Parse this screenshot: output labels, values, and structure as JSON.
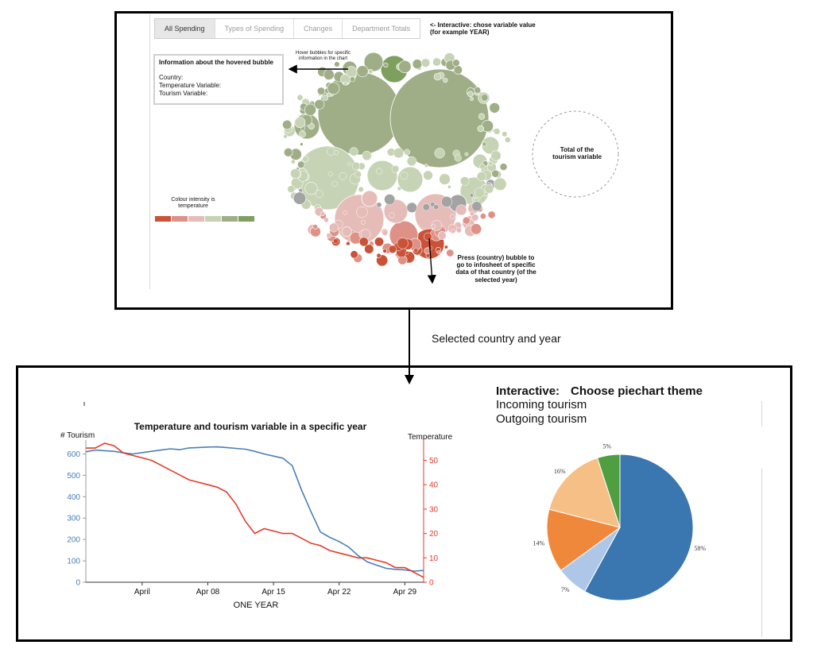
{
  "top_panel": {
    "tabs": [
      {
        "label": "All Spending",
        "active": true
      },
      {
        "label": "Types of Spending",
        "active": false
      },
      {
        "label": "Changes",
        "active": false
      },
      {
        "label": "Department Totals",
        "active": false
      }
    ],
    "note_interactive": "<- Interactive: chose variable value\n(for example YEAR)",
    "note_hover": "Hover bubbles for specific\ninformation in the chart",
    "infobox": {
      "title": "Information about the hovered bubble",
      "fields": [
        "Country:",
        "Temperature Variable:",
        "Tourism Variable:"
      ]
    },
    "legend": {
      "label": "Colour intensity is temperature",
      "colors": [
        "#c95237",
        "#de9186",
        "#e6bcb8",
        "#c6d3b4",
        "#9fae87",
        "#7ea05f"
      ]
    },
    "total_label": "Total of the\ntourism variable",
    "press_note": "Press (country) bubble to\ngo to infosheet of specific\ndata of that country (of the\nselected year)"
  },
  "connector_label": "Selected country and year",
  "bottom_panel": {
    "pie_interactive": {
      "prefix": "Interactive:",
      "title": "Choose piechart theme",
      "options": [
        "Incoming tourism",
        "Outgoing tourism"
      ]
    }
  },
  "chart_data": [
    {
      "type": "line",
      "title": "Temperature and tourism variable in a specific year",
      "xlabel": "ONE YEAR",
      "ylabel": "# Tourism",
      "y2label": "Temperature",
      "x_ticks": [
        "April",
        "Apr 08",
        "Apr 15",
        "Apr 22",
        "Apr 29"
      ],
      "x_tick_days": [
        1,
        8,
        15,
        22,
        29
      ],
      "xlim_days": [
        -5,
        31
      ],
      "ylim": [
        0,
        650
      ],
      "y_ticks": [
        0,
        100,
        200,
        300,
        400,
        500,
        600
      ],
      "y2lim": [
        0,
        57
      ],
      "y2_ticks": [
        0,
        10,
        20,
        30,
        40,
        50
      ],
      "series": [
        {
          "name": "# Tourism",
          "axis": "left",
          "color": "#4a7fb5",
          "x": [
            -5,
            -4,
            -3,
            -2,
            -1,
            0,
            1,
            2,
            3,
            4,
            5,
            6,
            7,
            8,
            9,
            10,
            11,
            12,
            13,
            14,
            15,
            16,
            17,
            18,
            19,
            20,
            21,
            22,
            23,
            24,
            25,
            26,
            27,
            28,
            29,
            30,
            31
          ],
          "y": [
            610,
            618,
            615,
            612,
            605,
            600,
            606,
            612,
            618,
            624,
            620,
            628,
            630,
            632,
            633,
            630,
            626,
            622,
            612,
            600,
            590,
            580,
            545,
            430,
            330,
            235,
            210,
            190,
            165,
            125,
            95,
            80,
            65,
            60,
            58,
            52,
            55
          ]
        },
        {
          "name": "Temperature",
          "axis": "right",
          "color": "#e23b2a",
          "x": [
            -5,
            -4,
            -3,
            -2,
            -1,
            0,
            1,
            2,
            3,
            4,
            5,
            6,
            7,
            8,
            9,
            10,
            11,
            12,
            13,
            14,
            15,
            16,
            17,
            18,
            19,
            20,
            21,
            22,
            23,
            24,
            25,
            26,
            27,
            28,
            29,
            30,
            31
          ],
          "y": [
            55,
            55,
            57,
            56,
            53,
            52,
            51,
            50,
            48,
            46,
            44,
            42,
            41,
            40,
            39,
            37,
            32,
            25,
            20,
            22,
            21,
            20,
            20,
            18,
            16,
            15,
            13,
            12,
            11,
            10,
            10,
            9,
            8,
            6,
            6,
            4,
            2
          ]
        }
      ]
    },
    {
      "type": "pie",
      "labels": [
        "58%",
        "7%",
        "14%",
        "16%",
        "5%"
      ],
      "values": [
        58,
        7,
        14,
        16,
        5
      ],
      "colors": [
        "#3a76af",
        "#aec7e8",
        "#f0883c",
        "#f5bf85",
        "#4f9e3f"
      ]
    }
  ]
}
